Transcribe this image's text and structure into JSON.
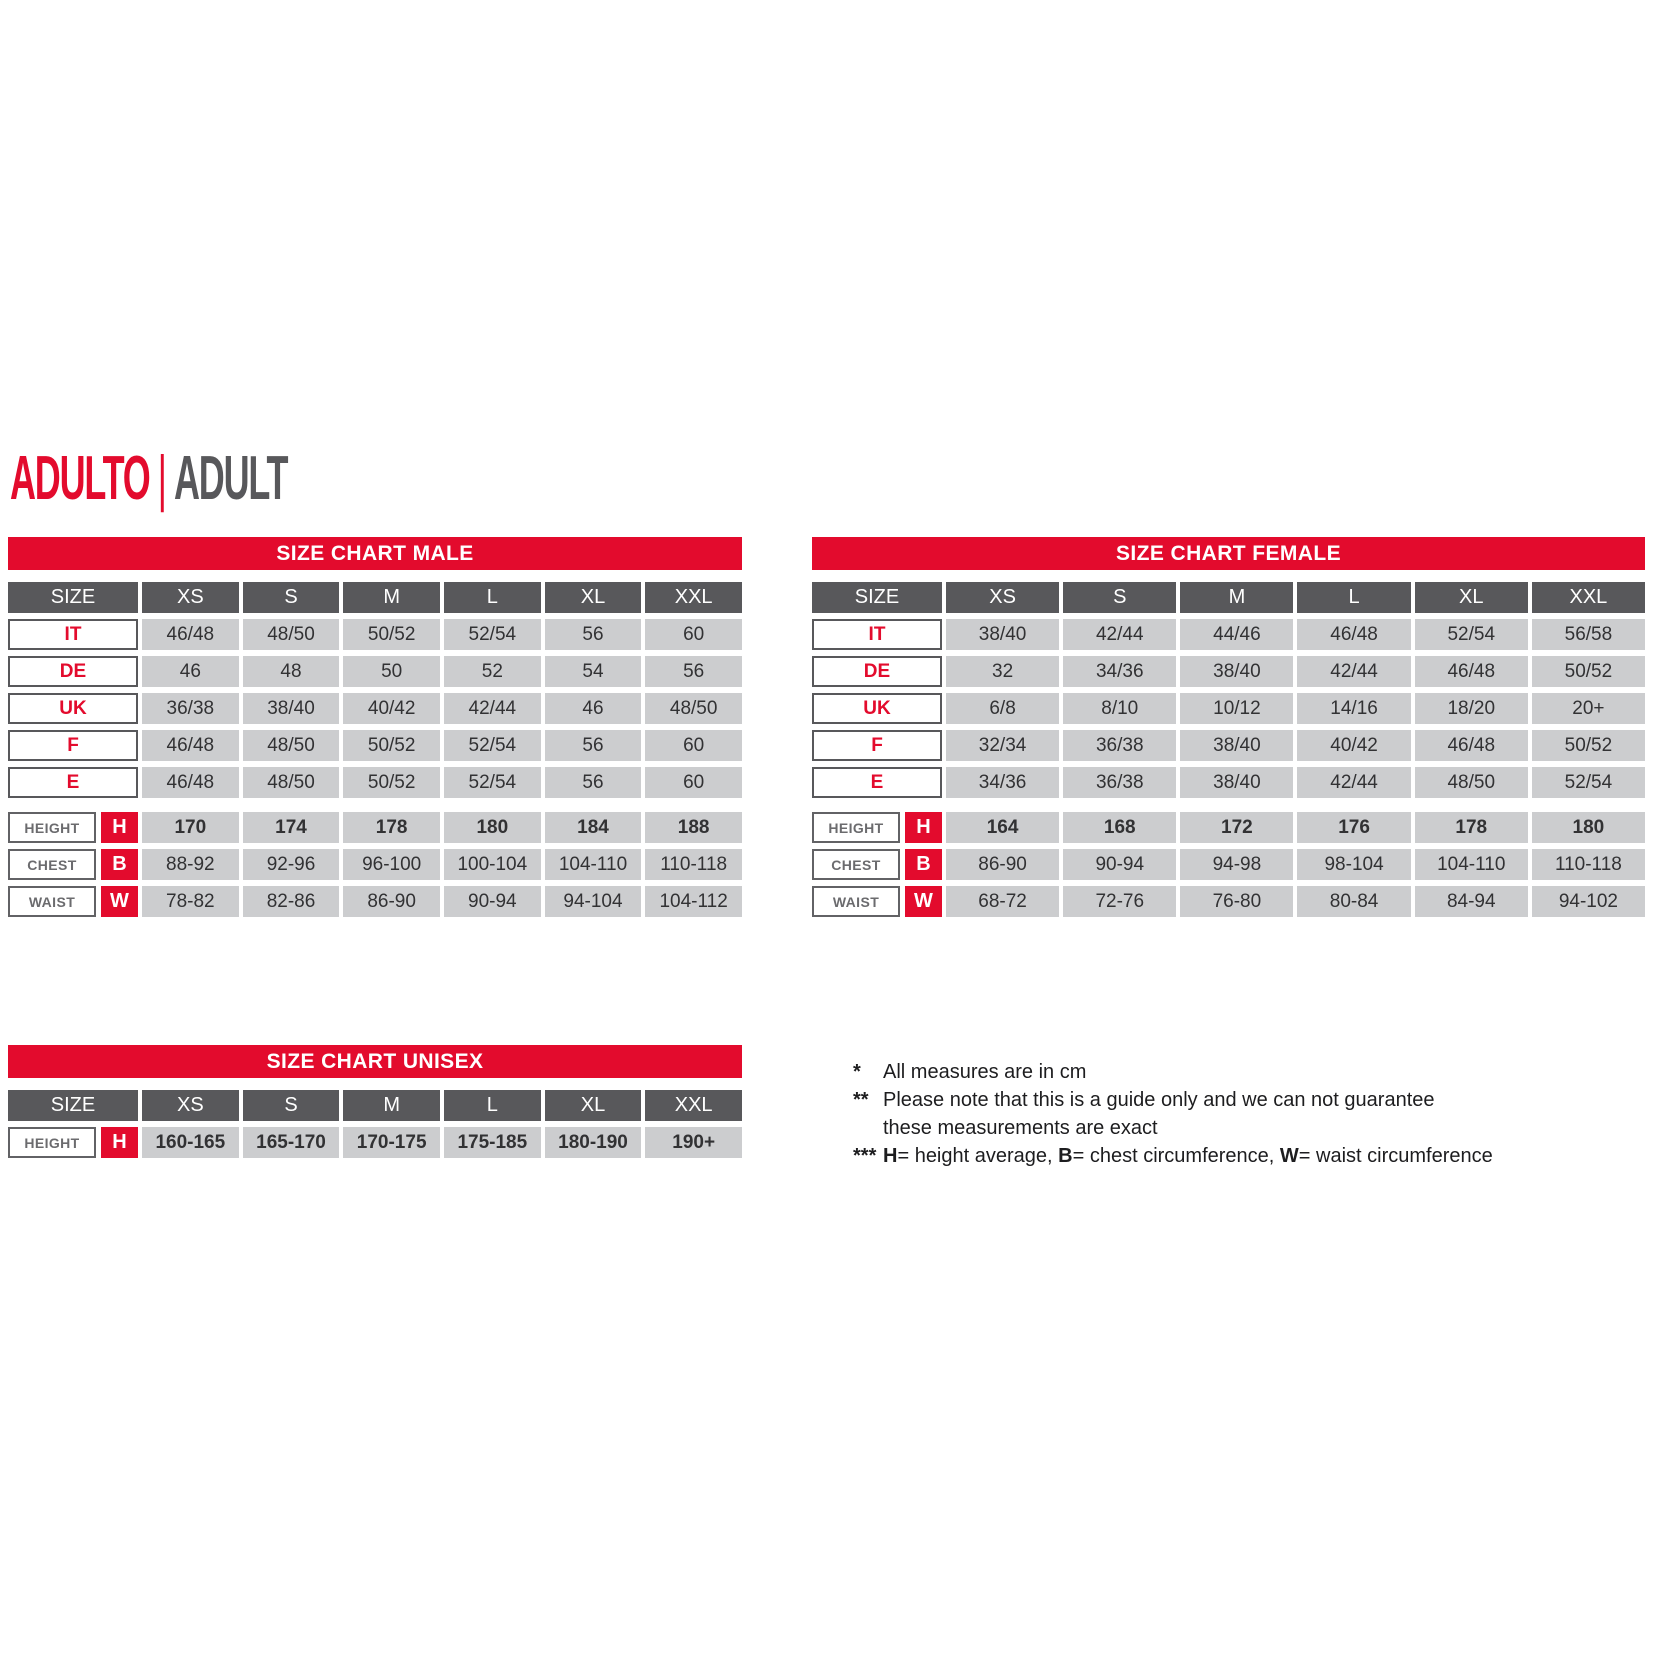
{
  "title": {
    "primary": "ADULTO",
    "separator": "|",
    "secondary": "ADULT"
  },
  "colors": {
    "accent_red": "#e30b2d",
    "header_gray": "#58585b",
    "cell_gray": "#cccdcf"
  },
  "tables": {
    "male": {
      "title": "SIZE CHART MALE",
      "corner": "SIZE",
      "columns": [
        "XS",
        "S",
        "M",
        "L",
        "XL",
        "XXL"
      ],
      "size_rows": [
        {
          "label": "IT",
          "values": [
            "46/48",
            "48/50",
            "50/52",
            "52/54",
            "56",
            "60"
          ]
        },
        {
          "label": "DE",
          "values": [
            "46",
            "48",
            "50",
            "52",
            "54",
            "56"
          ]
        },
        {
          "label": "UK",
          "values": [
            "36/38",
            "38/40",
            "40/42",
            "42/44",
            "46",
            "48/50"
          ]
        },
        {
          "label": "F",
          "values": [
            "46/48",
            "48/50",
            "50/52",
            "52/54",
            "56",
            "60"
          ]
        },
        {
          "label": "E",
          "values": [
            "46/48",
            "48/50",
            "50/52",
            "52/54",
            "56",
            "60"
          ]
        }
      ],
      "measure_rows": [
        {
          "label": "HEIGHT",
          "letter": "H",
          "bold": true,
          "values": [
            "170",
            "174",
            "178",
            "180",
            "184",
            "188"
          ]
        },
        {
          "label": "CHEST",
          "letter": "B",
          "bold": false,
          "values": [
            "88-92",
            "92-96",
            "96-100",
            "100-104",
            "104-110",
            "110-118"
          ]
        },
        {
          "label": "WAIST",
          "letter": "W",
          "bold": false,
          "values": [
            "78-82",
            "82-86",
            "86-90",
            "90-94",
            "94-104",
            "104-112"
          ]
        }
      ]
    },
    "female": {
      "title": "SIZE CHART FEMALE",
      "corner": "SIZE",
      "columns": [
        "XS",
        "S",
        "M",
        "L",
        "XL",
        "XXL"
      ],
      "size_rows": [
        {
          "label": "IT",
          "values": [
            "38/40",
            "42/44",
            "44/46",
            "46/48",
            "52/54",
            "56/58"
          ]
        },
        {
          "label": "DE",
          "values": [
            "32",
            "34/36",
            "38/40",
            "42/44",
            "46/48",
            "50/52"
          ]
        },
        {
          "label": "UK",
          "values": [
            "6/8",
            "8/10",
            "10/12",
            "14/16",
            "18/20",
            "20+"
          ]
        },
        {
          "label": "F",
          "values": [
            "32/34",
            "36/38",
            "38/40",
            "40/42",
            "46/48",
            "50/52"
          ]
        },
        {
          "label": "E",
          "values": [
            "34/36",
            "36/38",
            "38/40",
            "42/44",
            "48/50",
            "52/54"
          ]
        }
      ],
      "measure_rows": [
        {
          "label": "HEIGHT",
          "letter": "H",
          "bold": true,
          "values": [
            "164",
            "168",
            "172",
            "176",
            "178",
            "180"
          ]
        },
        {
          "label": "CHEST",
          "letter": "B",
          "bold": false,
          "values": [
            "86-90",
            "90-94",
            "94-98",
            "98-104",
            "104-110",
            "110-118"
          ]
        },
        {
          "label": "WAIST",
          "letter": "W",
          "bold": false,
          "values": [
            "68-72",
            "72-76",
            "76-80",
            "80-84",
            "84-94",
            "94-102"
          ]
        }
      ]
    },
    "unisex": {
      "title": "SIZE CHART UNISEX",
      "corner": "SIZE",
      "columns": [
        "XS",
        "S",
        "M",
        "L",
        "XL",
        "XXL"
      ],
      "size_rows": [],
      "measure_rows": [
        {
          "label": "HEIGHT",
          "letter": "H",
          "bold": true,
          "values": [
            "160-165",
            "165-170",
            "170-175",
            "175-185",
            "180-190",
            "190+"
          ]
        }
      ]
    }
  },
  "notes": [
    {
      "marker": "*",
      "segments": [
        {
          "text": "All measures are in cm"
        }
      ]
    },
    {
      "marker": "**",
      "segments": [
        {
          "text": "Please note that this is a guide only and we can not guarantee"
        }
      ]
    },
    {
      "marker": "",
      "segments": [
        {
          "text": "these measurements are exact"
        }
      ]
    },
    {
      "marker": "***",
      "segments": [
        {
          "text": "H",
          "bold": true
        },
        {
          "text": "= height average, "
        },
        {
          "text": "B",
          "bold": true
        },
        {
          "text": "= chest circumference, "
        },
        {
          "text": "W",
          "bold": true
        },
        {
          "text": "= waist circumference"
        }
      ]
    }
  ]
}
